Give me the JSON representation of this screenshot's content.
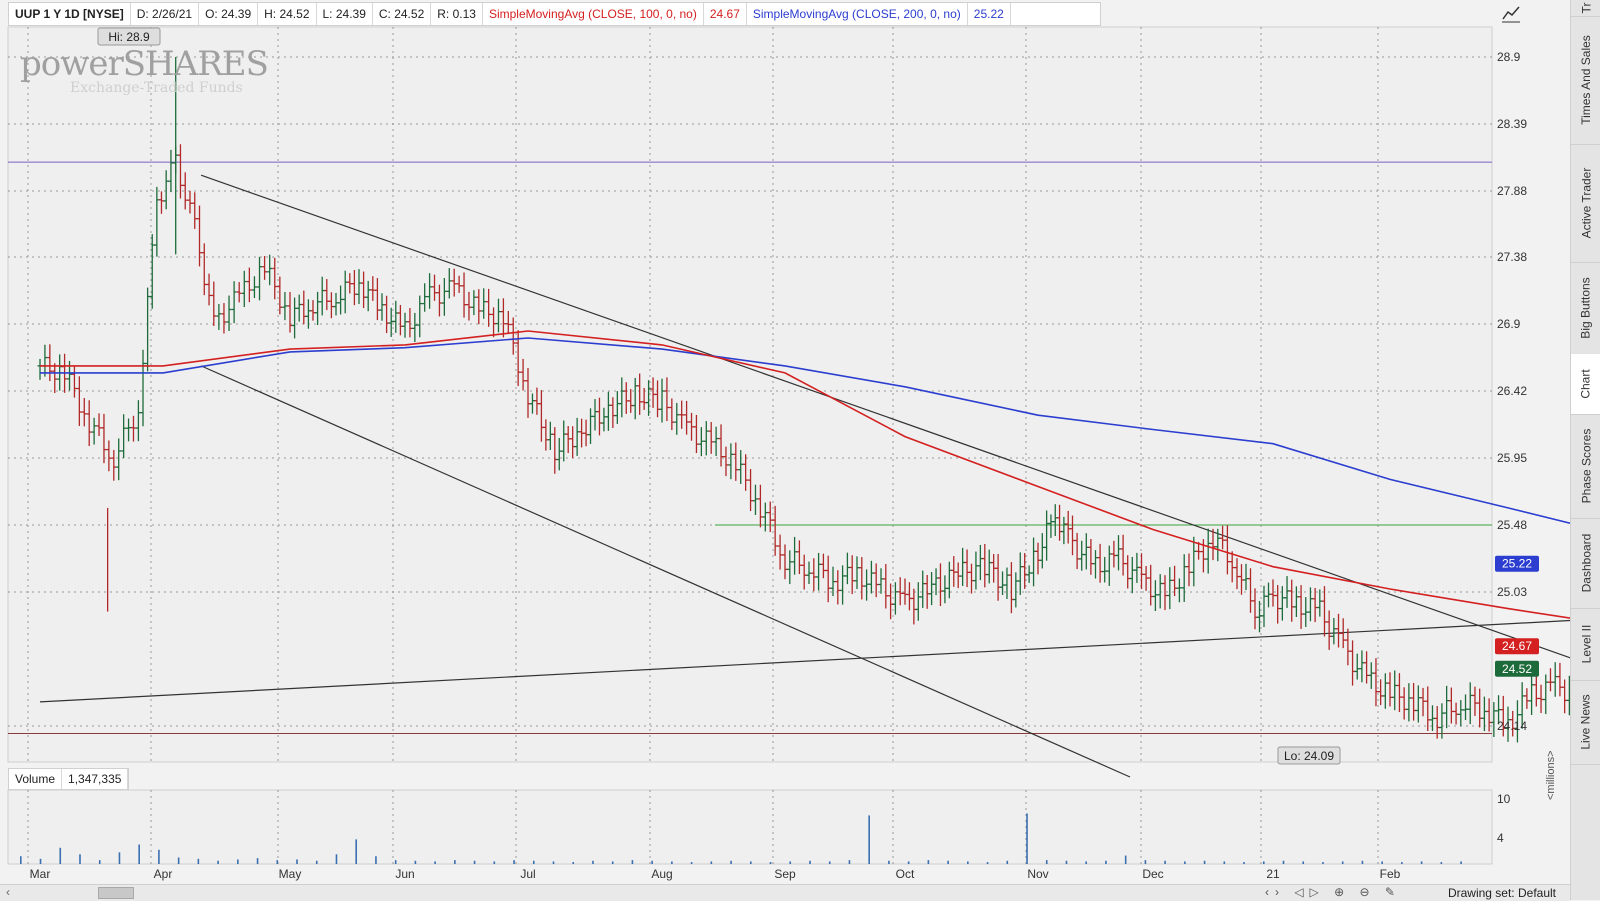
{
  "header": {
    "symbol": "UUP 1 Y 1D [NYSE]",
    "date": "D: 2/26/21",
    "open": "O: 24.39",
    "high": "H: 24.52",
    "low": "L: 24.39",
    "close": "C: 24.52",
    "range": "R: 0.13",
    "sma100_label": "SimpleMovingAvg (CLOSE, 100, 0, no)",
    "sma100_value": "24.67",
    "sma200_label": "SimpleMovingAvg (CLOSE, 200, 0, no)",
    "sma200_value": "25.22"
  },
  "watermark": {
    "main": "powerSHARES",
    "sub": "Exchange-Traded Funds"
  },
  "colors": {
    "sma100": "#d42020",
    "sma200": "#2b3ecf",
    "up_bar": "#1d6b3a",
    "down_bar": "#b02828",
    "volume": "#3a6fb0",
    "hline_purple": "#7b5fc0",
    "hline_green": "#3aa03a",
    "hline_brown": "#8a3a3a"
  },
  "volume": {
    "label": "Volume",
    "value": "1,347,335",
    "axis_label": "<millions>",
    "ticks": [
      "10",
      "4"
    ]
  },
  "chart_data": {
    "type": "ohlc",
    "y_axis_ticks": [
      "28.9",
      "28.39",
      "27.88",
      "27.38",
      "26.9",
      "26.42",
      "25.95",
      "25.48",
      "25.03",
      "24.14"
    ],
    "x_axis_labels": [
      "Mar",
      "Apr",
      "May",
      "Jun",
      "Jul",
      "Aug",
      "Sep",
      "Oct",
      "Nov",
      "Dec",
      "21",
      "Feb"
    ],
    "hi_label": "Hi: 28.9",
    "lo_label": "Lo: 24.09",
    "price_close_label": "24.52",
    "sma100_last": "24.67",
    "sma200_last": "25.22",
    "series_close": [
      {
        "m": 0,
        "v": 26.6
      },
      {
        "m": 0.2,
        "v": 26.55
      },
      {
        "m": 0.4,
        "v": 26.2
      },
      {
        "m": 0.6,
        "v": 25.95
      },
      {
        "m": 0.8,
        "v": 26.3
      },
      {
        "m": 0.95,
        "v": 27.8
      },
      {
        "m": 1.1,
        "v": 28.1
      },
      {
        "m": 1.25,
        "v": 27.6
      },
      {
        "m": 1.4,
        "v": 26.9
      },
      {
        "m": 1.6,
        "v": 27.1
      },
      {
        "m": 1.8,
        "v": 27.3
      },
      {
        "m": 2.0,
        "v": 26.95
      },
      {
        "m": 2.2,
        "v": 27.05
      },
      {
        "m": 2.4,
        "v": 27.1
      },
      {
        "m": 2.6,
        "v": 27.2
      },
      {
        "m": 2.8,
        "v": 27.0
      },
      {
        "m": 3.0,
        "v": 26.85
      },
      {
        "m": 3.2,
        "v": 27.1
      },
      {
        "m": 3.4,
        "v": 27.15
      },
      {
        "m": 3.6,
        "v": 27.0
      },
      {
        "m": 3.8,
        "v": 26.95
      },
      {
        "m": 4.0,
        "v": 26.4
      },
      {
        "m": 4.2,
        "v": 26.0
      },
      {
        "m": 4.4,
        "v": 26.15
      },
      {
        "m": 4.6,
        "v": 26.3
      },
      {
        "m": 4.8,
        "v": 26.4
      },
      {
        "m": 5.0,
        "v": 26.35
      },
      {
        "m": 5.2,
        "v": 26.15
      },
      {
        "m": 5.4,
        "v": 26.05
      },
      {
        "m": 5.6,
        "v": 25.9
      },
      {
        "m": 5.8,
        "v": 25.6
      },
      {
        "m": 6.0,
        "v": 25.25
      },
      {
        "m": 6.2,
        "v": 25.2
      },
      {
        "m": 6.4,
        "v": 25.1
      },
      {
        "m": 6.6,
        "v": 25.15
      },
      {
        "m": 6.8,
        "v": 25.05
      },
      {
        "m": 7.0,
        "v": 24.95
      },
      {
        "m": 7.2,
        "v": 25.05
      },
      {
        "m": 7.4,
        "v": 25.15
      },
      {
        "m": 7.6,
        "v": 25.2
      },
      {
        "m": 7.8,
        "v": 25.05
      },
      {
        "m": 8.0,
        "v": 25.3
      },
      {
        "m": 8.15,
        "v": 25.55
      },
      {
        "m": 8.3,
        "v": 25.35
      },
      {
        "m": 8.5,
        "v": 25.2
      },
      {
        "m": 8.7,
        "v": 25.25
      },
      {
        "m": 8.9,
        "v": 25.1
      },
      {
        "m": 9.1,
        "v": 25.0
      },
      {
        "m": 9.3,
        "v": 25.2
      },
      {
        "m": 9.5,
        "v": 25.4
      },
      {
        "m": 9.7,
        "v": 25.2
      },
      {
        "m": 9.85,
        "v": 24.9
      },
      {
        "m": 10.0,
        "v": 25.0
      },
      {
        "m": 10.2,
        "v": 24.95
      },
      {
        "m": 10.4,
        "v": 24.9
      },
      {
        "m": 10.6,
        "v": 24.65
      },
      {
        "m": 10.8,
        "v": 24.45
      },
      {
        "m": 11.0,
        "v": 24.35
      },
      {
        "m": 11.2,
        "v": 24.3
      },
      {
        "m": 11.4,
        "v": 24.2
      },
      {
        "m": 11.6,
        "v": 24.3
      },
      {
        "m": 11.8,
        "v": 24.25
      },
      {
        "m": 12.0,
        "v": 24.15
      },
      {
        "m": 12.2,
        "v": 24.35
      },
      {
        "m": 12.4,
        "v": 24.4
      },
      {
        "m": 12.6,
        "v": 24.35
      },
      {
        "m": 12.8,
        "v": 24.3
      },
      {
        "m": 13.0,
        "v": 24.55
      },
      {
        "m": 13.2,
        "v": 24.45
      },
      {
        "m": 13.4,
        "v": 24.35
      },
      {
        "m": 13.6,
        "v": 24.4
      },
      {
        "m": 13.8,
        "v": 24.28
      },
      {
        "m": 13.9,
        "v": 24.52
      }
    ],
    "sma100": [
      {
        "m": 0,
        "v": 26.6
      },
      {
        "m": 1,
        "v": 26.6
      },
      {
        "m": 2,
        "v": 26.72
      },
      {
        "m": 3,
        "v": 26.75
      },
      {
        "m": 4,
        "v": 26.85
      },
      {
        "m": 5,
        "v": 26.75
      },
      {
        "m": 6,
        "v": 26.55
      },
      {
        "m": 7,
        "v": 26.1
      },
      {
        "m": 8,
        "v": 25.75
      },
      {
        "m": 9,
        "v": 25.45
      },
      {
        "m": 10,
        "v": 25.2
      },
      {
        "m": 11,
        "v": 25.05
      },
      {
        "m": 12,
        "v": 24.92
      },
      {
        "m": 13,
        "v": 24.8
      },
      {
        "m": 13.9,
        "v": 24.67
      }
    ],
    "sma200": [
      {
        "m": 0,
        "v": 26.55
      },
      {
        "m": 1,
        "v": 26.55
      },
      {
        "m": 2,
        "v": 26.7
      },
      {
        "m": 3,
        "v": 26.73
      },
      {
        "m": 4,
        "v": 26.8
      },
      {
        "m": 5,
        "v": 26.72
      },
      {
        "m": 6,
        "v": 26.6
      },
      {
        "m": 7,
        "v": 26.45
      },
      {
        "m": 8,
        "v": 26.25
      },
      {
        "m": 9,
        "v": 26.15
      },
      {
        "m": 10,
        "v": 26.05
      },
      {
        "m": 11,
        "v": 25.8
      },
      {
        "m": 12,
        "v": 25.6
      },
      {
        "m": 13,
        "v": 25.4
      },
      {
        "m": 13.9,
        "v": 25.22
      }
    ],
    "volume_millions": [
      1.2,
      0.8,
      2.5,
      1.5,
      0.6,
      1.8,
      3.0,
      2.2,
      1.0,
      0.8,
      0.5,
      0.7,
      0.9,
      0.6,
      0.7,
      0.5,
      1.5,
      3.8,
      1.2,
      0.6,
      0.5,
      0.4,
      0.6,
      0.5,
      0.4,
      0.6,
      0.5,
      0.4,
      0.3,
      0.5,
      0.4,
      0.6,
      0.5,
      0.4,
      0.3,
      0.4,
      0.5,
      0.4,
      0.3,
      0.4,
      0.5,
      0.4,
      0.6,
      7.5,
      0.5,
      0.4,
      0.6,
      0.5,
      0.4,
      0.3,
      0.5,
      7.8,
      0.6,
      0.5,
      0.4,
      0.5,
      1.3,
      0.6,
      0.5,
      0.4,
      0.5,
      0.4,
      0.3,
      0.4,
      0.5,
      0.4,
      0.3,
      0.4,
      0.5,
      0.4,
      0.3,
      0.4,
      0.3,
      0.4
    ],
    "horizontal_lines": [
      {
        "name": "purple-hline",
        "v": 28.1
      },
      {
        "name": "green-hline",
        "v": 25.48
      },
      {
        "name": "brown-hline",
        "v": 24.09
      }
    ],
    "trendlines": [
      {
        "name": "channel-upper",
        "m1": 1.3,
        "v1": 28.0,
        "m2": 13.95,
        "v2": 24.2
      },
      {
        "name": "channel-lower",
        "m1": 1.3,
        "v1": 26.6,
        "m2": 8.8,
        "v2": 23.8
      },
      {
        "name": "rising-line",
        "m1": 0,
        "v1": 24.3,
        "m2": 13.95,
        "v2": 24.9
      }
    ]
  },
  "side_tabs": [
    "Times And Sales",
    "Active Trader",
    "Big Buttons",
    "Chart",
    "Phase Scores",
    "Dashboard",
    "Level II",
    "Live News",
    "Tr"
  ],
  "bottom": {
    "drawing_set": "Drawing set: Default"
  }
}
